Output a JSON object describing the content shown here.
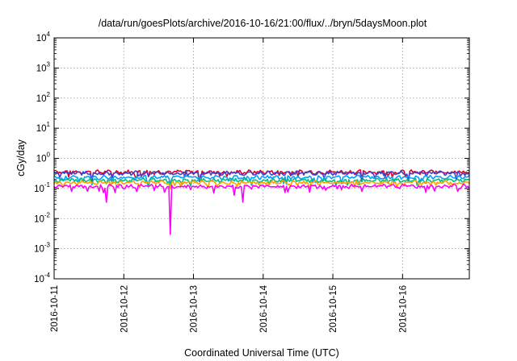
{
  "chart_data": {
    "type": "line",
    "title": "/data/run/goesPlots/archive/2016-10-16/21:00/flux/../bryn/5daysMoon.plot",
    "xlabel": "Coordinated Universal Time (UTC)",
    "ylabel": "cGy/day",
    "yscale": "log",
    "ylim": [
      0.0001,
      10000
    ],
    "yticks": [
      0.0001,
      0.001,
      0.01,
      0.1,
      1,
      10,
      100,
      1000,
      10000
    ],
    "ytick_labels": [
      {
        "base": "10",
        "exp": "-4"
      },
      {
        "base": "10",
        "exp": "-3"
      },
      {
        "base": "10",
        "exp": "-2"
      },
      {
        "base": "10",
        "exp": "-1"
      },
      {
        "base": "10",
        "exp": "0"
      },
      {
        "base": "10",
        "exp": "1"
      },
      {
        "base": "10",
        "exp": "2"
      },
      {
        "base": "10",
        "exp": "3"
      },
      {
        "base": "10",
        "exp": "4"
      }
    ],
    "xlim": [
      "2016-10-11",
      "2016-10-16T23:00"
    ],
    "xtick_labels": [
      "2016-10-11",
      "2016-10-12",
      "2016-10-13",
      "2016-10-14",
      "2016-10-15",
      "2016-10-16"
    ],
    "grid": true,
    "series": [
      {
        "color": "#e0002a",
        "level": 0.36,
        "dips": [
          [
            "2016-10-11T13:00",
            0.17
          ],
          [
            "2016-10-13T02:00",
            0.18
          ],
          [
            "2016-10-15T10:00",
            0.18
          ],
          [
            "2016-10-16T02:00",
            0.17
          ]
        ]
      },
      {
        "color": "#4040c8",
        "level": 0.33,
        "dips": [
          [
            "2016-10-11T13:00",
            0.16
          ],
          [
            "2016-10-13T02:00",
            0.17
          ],
          [
            "2016-10-15T10:00",
            0.17
          ],
          [
            "2016-10-16T02:00",
            0.16
          ]
        ]
      },
      {
        "color": "#00a0ff",
        "level": 0.24,
        "dips": [
          [
            "2016-10-12T16:00",
            0.14
          ],
          [
            "2016-10-14T08:00",
            0.14
          ]
        ]
      },
      {
        "color": "#00c080",
        "level": 0.19,
        "dips": [
          [
            "2016-10-12T16:00",
            0.12
          ]
        ]
      },
      {
        "color": "#ffa000",
        "level": 0.16,
        "dips": [
          [
            "2016-10-12T16:00",
            0.1
          ]
        ]
      },
      {
        "color": "#ff00ff",
        "level": 0.12,
        "dips": [
          [
            "2016-10-11T18:00",
            0.035
          ],
          [
            "2016-10-12T16:00",
            0.003
          ],
          [
            "2016-10-13T07:00",
            0.07
          ],
          [
            "2016-10-13T14:00",
            0.06
          ],
          [
            "2016-10-13T17:00",
            0.035
          ],
          [
            "2016-10-14T16:00",
            0.075
          ],
          [
            "2016-10-16T08:00",
            0.075
          ]
        ]
      }
    ]
  }
}
